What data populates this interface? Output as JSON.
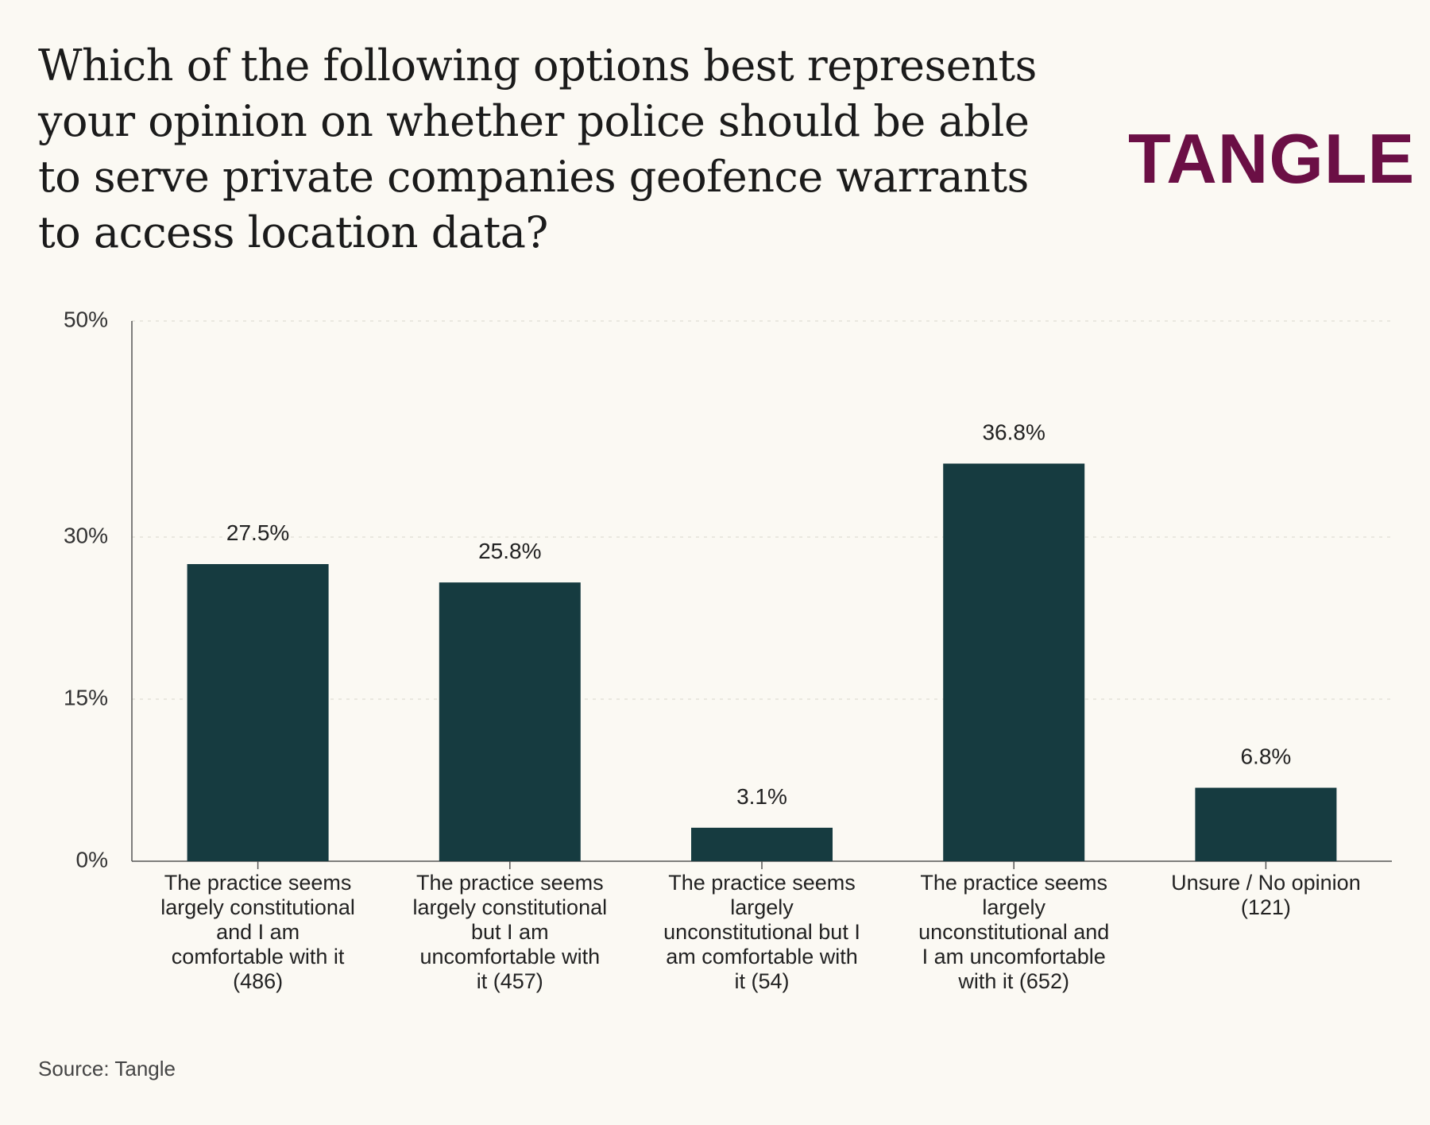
{
  "header": {
    "title": "Which of the following options best represents your opinion on whether police should be able to serve private companies geofence warrants to access location data?",
    "logo": "TANGLE"
  },
  "footer": {
    "source": "Source: Tangle"
  },
  "colors": {
    "bar": "#163b40",
    "logo": "#6b0f45",
    "background": "#fbf9f3",
    "axis": "#555555",
    "grid": "#e4e2da"
  },
  "chart_data": {
    "type": "bar",
    "title": "Which of the following options best represents your opinion on whether police should be able to serve private companies geofence warrants to access location data?",
    "xlabel": "",
    "ylabel": "",
    "ylim": [
      0,
      50
    ],
    "yticks": [
      0,
      15,
      30,
      50
    ],
    "ytick_labels": [
      "0%",
      "15%",
      "30%",
      "50%"
    ],
    "grid": true,
    "categories": [
      [
        "The practice seems",
        "largely constitutional",
        "and I am",
        "comfortable with it",
        "(486)"
      ],
      [
        "The practice seems",
        "largely constitutional",
        "but I am",
        "uncomfortable with",
        "it (457)"
      ],
      [
        "The practice seems",
        "largely",
        "unconstitutional but I",
        "am comfortable with",
        "it (54)"
      ],
      [
        "The practice seems",
        "largely",
        "unconstitutional and",
        "I am uncomfortable",
        "with it (652)"
      ],
      [
        "Unsure / No opinion",
        "(121)"
      ]
    ],
    "values": [
      27.5,
      25.8,
      3.1,
      36.8,
      6.8
    ],
    "value_labels": [
      "27.5%",
      "25.8%",
      "3.1%",
      "36.8%",
      "6.8%"
    ]
  }
}
